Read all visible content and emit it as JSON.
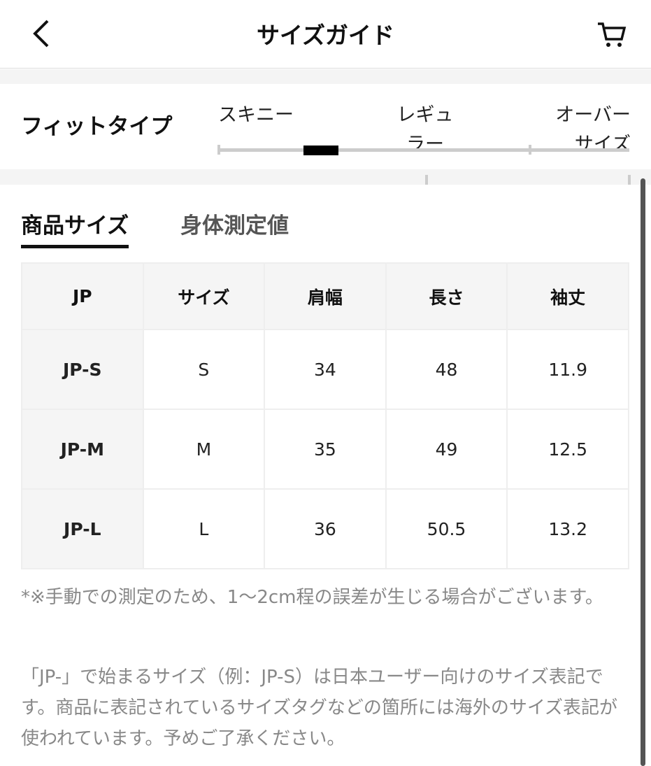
{
  "header": {
    "title": "サイズガイド",
    "back_icon": "chevron-left-icon",
    "cart_icon": "cart-icon"
  },
  "fit_type": {
    "label": "フィットタイプ",
    "options": [
      "スキニー",
      "レギュラー",
      "オーバーサイズ"
    ],
    "options_display": [
      [
        "スキニー"
      ],
      [
        "レギュ",
        "ラー"
      ],
      [
        "オーバー",
        "サイズ"
      ]
    ],
    "selected_position": 0.21
  },
  "tabs": [
    {
      "label": "商品サイズ",
      "active": true
    },
    {
      "label": "身体測定値",
      "active": false
    }
  ],
  "table": {
    "headers": [
      "JP",
      "サイズ",
      "肩幅",
      "長さ",
      "袖丈"
    ],
    "rows": [
      [
        "JP-S",
        "S",
        "34",
        "48",
        "11.9"
      ],
      [
        "JP-M",
        "M",
        "35",
        "49",
        "12.5"
      ],
      [
        "JP-L",
        "L",
        "36",
        "50.5",
        "13.2"
      ]
    ]
  },
  "notes": [
    "*※手動での測定のため、1〜2cm程の誤差が生じる場合がございます。",
    "「JP-」で始まるサイズ（例：JP-S）は日本ユーザー向けのサイズ表記です。商品に表記されているサイズタグなどの箇所には海外のサイズ表記が使われています。予めご了承ください。"
  ]
}
